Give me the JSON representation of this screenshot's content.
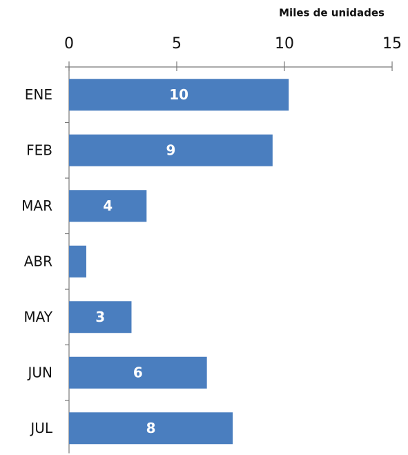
{
  "chart_data": {
    "type": "bar",
    "orientation": "horizontal",
    "title": "Miles de unidades",
    "categories": [
      "ENE",
      "FEB",
      "MAR",
      "ABR",
      "MAY",
      "JUN",
      "JUL"
    ],
    "values": [
      10.2,
      9.45,
      3.6,
      0.8,
      2.9,
      6.4,
      7.6
    ],
    "value_labels": [
      "10",
      "9",
      "4",
      null,
      "3",
      "6",
      "8"
    ],
    "color": "#4a7ebf",
    "xlim": [
      0,
      15
    ],
    "xticks": [
      0,
      5,
      10,
      15
    ],
    "grid": false
  }
}
